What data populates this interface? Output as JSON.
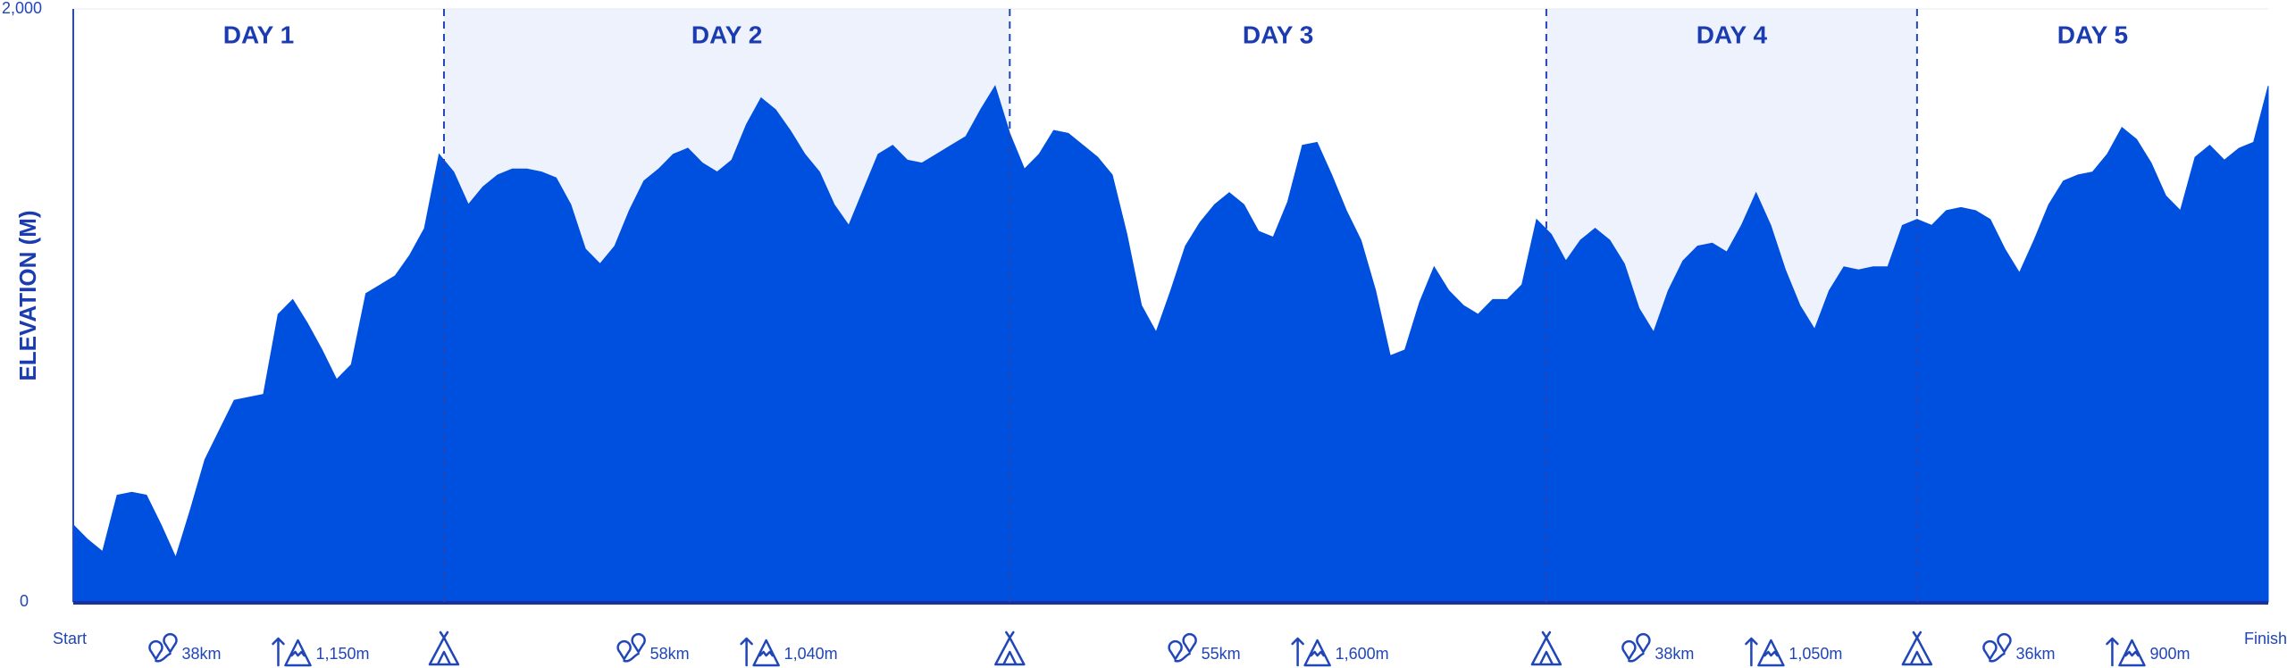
{
  "chart_data": {
    "type": "area",
    "y_label": "ELEVATION (M)",
    "color": "#0050e0",
    "start_label": "Start",
    "finish_label": "Finish",
    "ylim": [
      0,
      2000
    ],
    "yticks": [
      0,
      {
        "value": 2000,
        "label": "2,000"
      }
    ],
    "days": [
      {
        "label": "DAY 1",
        "distance": 38,
        "distance_label": "38km",
        "climb": "1,150m"
      },
      {
        "label": "DAY 2",
        "distance": 58,
        "distance_label": "58km",
        "climb": "1,040m"
      },
      {
        "label": "DAY 3",
        "distance": 55,
        "distance_label": "55km",
        "climb": "1,600m"
      },
      {
        "label": "DAY 4",
        "distance": 38,
        "distance_label": "38km",
        "climb": "1,050m"
      },
      {
        "label": "DAY 5",
        "distance": 36,
        "distance_label": "36km",
        "climb": "900m"
      }
    ],
    "values": [
      260,
      210,
      170,
      360,
      370,
      360,
      260,
      150,
      310,
      480,
      580,
      680,
      690,
      700,
      970,
      1020,
      940,
      850,
      750,
      800,
      1040,
      1070,
      1100,
      1170,
      1260,
      1510,
      1450,
      1340,
      1400,
      1440,
      1460,
      1460,
      1450,
      1430,
      1340,
      1190,
      1140,
      1200,
      1320,
      1420,
      1460,
      1510,
      1530,
      1480,
      1450,
      1490,
      1610,
      1700,
      1660,
      1590,
      1510,
      1450,
      1340,
      1270,
      1390,
      1510,
      1540,
      1490,
      1480,
      1510,
      1540,
      1570,
      1660,
      1740,
      1580,
      1460,
      1510,
      1590,
      1580,
      1540,
      1500,
      1440,
      1240,
      1000,
      910,
      1050,
      1200,
      1280,
      1340,
      1380,
      1340,
      1250,
      1230,
      1350,
      1540,
      1550,
      1440,
      1320,
      1220,
      1050,
      830,
      850,
      1010,
      1130,
      1050,
      1000,
      970,
      1020,
      1020,
      1070,
      1290,
      1240,
      1150,
      1220,
      1260,
      1220,
      1140,
      990,
      910,
      1050,
      1150,
      1200,
      1210,
      1180,
      1270,
      1380,
      1270,
      1120,
      1000,
      920,
      1050,
      1130,
      1120,
      1130,
      1130,
      1270,
      1290,
      1270,
      1320,
      1330,
      1320,
      1290,
      1190,
      1110,
      1220,
      1340,
      1420,
      1440,
      1450,
      1510,
      1600,
      1560,
      1480,
      1370,
      1320,
      1500,
      1540,
      1490,
      1530,
      1550,
      1740
    ]
  }
}
